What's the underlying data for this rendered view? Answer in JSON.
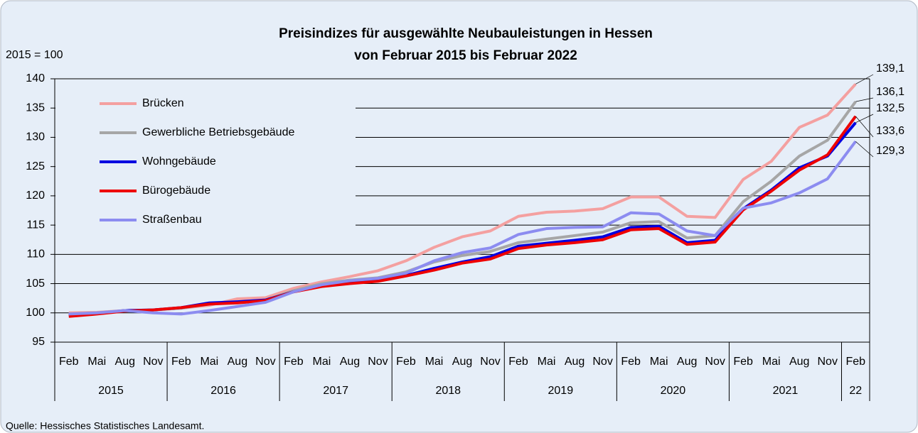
{
  "chart_data": {
    "type": "line",
    "title": "Preisindizes für ausgewählte Neubauleistungen in Hessen",
    "subtitle": "von Februar 2015 bis Februar 2022",
    "y_axis_label": "2015 = 100",
    "source": "Quelle: Hessisches Statistisches Landesamt.",
    "categories": [
      "Feb",
      "Mai",
      "Aug",
      "Nov",
      "Feb",
      "Mai",
      "Aug",
      "Nov",
      "Feb",
      "Mai",
      "Aug",
      "Nov",
      "Feb",
      "Mai",
      "Aug",
      "Nov",
      "Feb",
      "Mai",
      "Aug",
      "Nov",
      "Feb",
      "Mai",
      "Aug",
      "Nov",
      "Feb",
      "Mai",
      "Aug",
      "Nov",
      "Feb"
    ],
    "years": [
      "2015",
      "2016",
      "2017",
      "2018",
      "2019",
      "2020",
      "2021",
      "22"
    ],
    "ylim": [
      95,
      140
    ],
    "yticks": [
      95,
      100,
      105,
      110,
      115,
      120,
      125,
      130,
      135,
      140
    ],
    "grid": true,
    "legend": "upper left",
    "series": [
      {
        "name": "Brücken",
        "color": "#f4a0a0",
        "values": [
          100,
          100.1,
          100.4,
          100.5,
          100.8,
          101.3,
          102.4,
          102.6,
          104.2,
          105.3,
          106.2,
          107.2,
          108.9,
          111.2,
          113,
          114,
          116.5,
          117.2,
          117.4,
          117.8,
          119.8,
          119.8,
          116.5,
          116.3,
          122.8,
          125.9,
          131.7,
          133.8,
          139.1
        ],
        "value_labels": [
          null,
          null,
          null,
          null,
          null,
          null,
          null,
          null,
          null,
          null,
          null,
          null,
          null,
          null,
          null,
          null,
          null,
          null,
          null,
          null,
          null,
          null,
          null,
          null,
          null,
          null,
          null,
          null,
          "139,1"
        ]
      },
      {
        "name": "Gewerbliche Betriebsgebäude",
        "color": "#a6a6a6",
        "values": [
          99.8,
          100,
          100.4,
          100.5,
          100.8,
          101.5,
          101.8,
          102.2,
          103.8,
          105,
          105.6,
          106,
          107,
          108.7,
          109.8,
          110.5,
          112,
          112.6,
          113.2,
          113.8,
          115.4,
          115.6,
          112.8,
          113.2,
          119,
          122.5,
          126.8,
          129.5,
          136.1
        ],
        "value_labels": [
          null,
          null,
          null,
          null,
          null,
          null,
          null,
          null,
          null,
          null,
          null,
          null,
          null,
          null,
          null,
          null,
          null,
          null,
          null,
          null,
          null,
          null,
          null,
          null,
          null,
          null,
          null,
          null,
          "136,1"
        ]
      },
      {
        "name": "Wohngebäude",
        "color": "#0000e0",
        "values": [
          99.6,
          99.9,
          100.4,
          100.5,
          100.9,
          101.7,
          101.9,
          102.2,
          103.6,
          104.6,
          105.3,
          105.5,
          106.4,
          107.6,
          108.7,
          109.6,
          111.4,
          111.9,
          112.4,
          113,
          114.6,
          114.8,
          112,
          112.4,
          117.8,
          121,
          124.8,
          126.8,
          132.5
        ],
        "value_labels": [
          null,
          null,
          null,
          null,
          null,
          null,
          null,
          null,
          null,
          null,
          null,
          null,
          null,
          null,
          null,
          null,
          null,
          null,
          null,
          null,
          null,
          null,
          null,
          null,
          null,
          null,
          null,
          null,
          "132,5"
        ]
      },
      {
        "name": "Bürogebäude",
        "color": "#ee0000",
        "values": [
          99.4,
          99.8,
          100.3,
          100.5,
          100.9,
          101.5,
          101.7,
          102.1,
          103.6,
          104.5,
          105,
          105.4,
          106.3,
          107.3,
          108.5,
          109.2,
          111,
          111.6,
          112,
          112.5,
          114.2,
          114.4,
          111.7,
          112.1,
          117.6,
          120.8,
          124.4,
          127,
          133.6
        ],
        "value_labels": [
          null,
          null,
          null,
          null,
          null,
          null,
          null,
          null,
          null,
          null,
          null,
          null,
          null,
          null,
          null,
          null,
          null,
          null,
          null,
          null,
          null,
          null,
          null,
          null,
          null,
          null,
          null,
          null,
          "133,6"
        ]
      },
      {
        "name": "Straßenbau",
        "color": "#8c8cf0",
        "values": [
          99.8,
          100,
          100.4,
          100,
          99.8,
          100.4,
          101.1,
          101.8,
          103.6,
          104.8,
          105.5,
          105.9,
          106.8,
          108.9,
          110.3,
          111.1,
          113.4,
          114.4,
          114.6,
          114.7,
          117.1,
          116.9,
          114,
          113.2,
          117.9,
          118.8,
          120.5,
          122.9,
          129.3
        ],
        "value_labels": [
          null,
          null,
          null,
          null,
          null,
          null,
          null,
          null,
          null,
          null,
          null,
          null,
          null,
          null,
          null,
          null,
          null,
          null,
          null,
          null,
          null,
          null,
          null,
          null,
          null,
          null,
          null,
          null,
          "129,3"
        ]
      }
    ]
  }
}
